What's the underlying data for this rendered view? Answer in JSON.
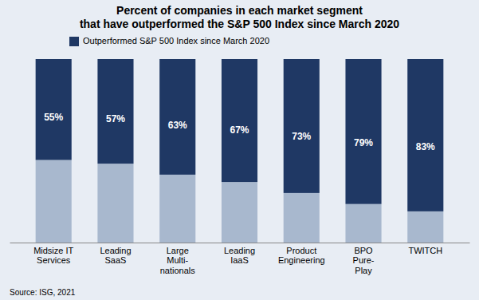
{
  "chart_data": {
    "type": "bar",
    "stacked": true,
    "title": "Percent of companies in each market segment\nthat have outperformed the S&P 500 Index since March 2020",
    "categories": [
      "Midsize IT\nServices",
      "Leading\nSaaS",
      "Large\nMulti-\nnationals",
      "Leading\nIaaS",
      "Product\nEngineering",
      "BPO\nPure-\nPlay",
      "TWITCH"
    ],
    "series": [
      {
        "color": "#A8B8CE",
        "values": [
          45,
          43,
          37,
          33,
          27,
          21,
          17
        ]
      },
      {
        "name": "Outperformed S&P 500 Index since March 2020",
        "color": "#1F3864",
        "values": [
          55,
          57,
          63,
          67,
          73,
          79,
          83
        ],
        "value_labels": [
          "55%",
          "57%",
          "63%",
          "67%",
          "73%",
          "79%",
          "83%"
        ],
        "data_labels": true
      }
    ],
    "ylim": [
      0,
      100
    ],
    "tick_labels": "x",
    "grid": false,
    "legend": "top",
    "source": "Source: ISG, 2021"
  }
}
